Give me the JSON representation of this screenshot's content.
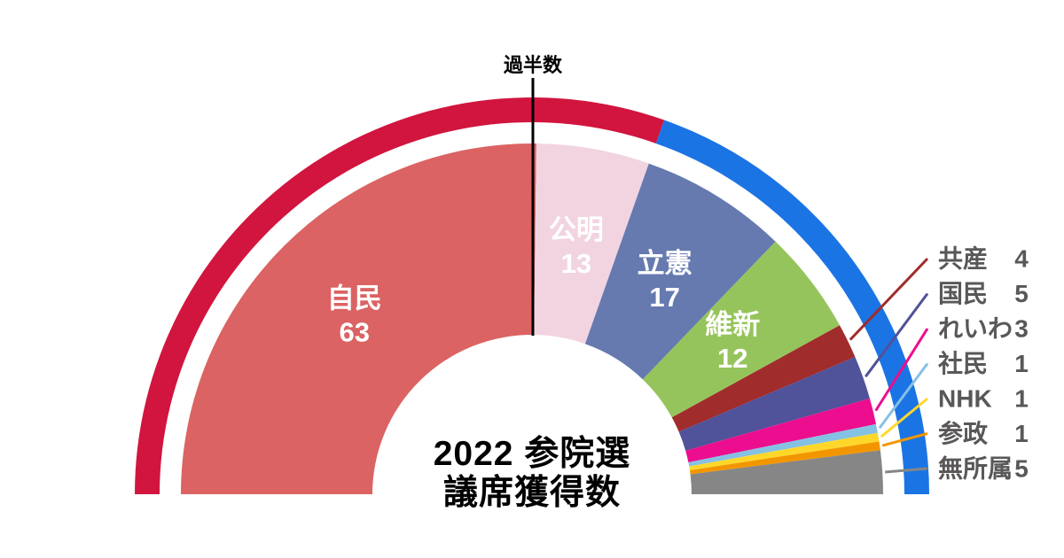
{
  "title": {
    "line1": "2022 参院選",
    "line2": "議席獲得数"
  },
  "majority_marker_label": "過半数",
  "legend_text_color": "#595757",
  "chart_data": {
    "type": "half-donut-parliament",
    "title": "2022 参院選 議席獲得数",
    "total_seats": 125,
    "majority_marker": {
      "label": "過半数",
      "at_seats": 62.5
    },
    "parties": [
      {
        "name": "自民",
        "seats": 63,
        "color": "#DB6363",
        "label": "inside"
      },
      {
        "name": "公明",
        "seats": 13,
        "color": "#F2D4E1",
        "label": "inside"
      },
      {
        "name": "立憲",
        "seats": 17,
        "color": "#667AB0",
        "label": "inside"
      },
      {
        "name": "維新",
        "seats": 12,
        "color": "#96C45C",
        "label": "inside"
      },
      {
        "name": "共産",
        "seats": 4,
        "color": "#A02C2C",
        "label": "legend"
      },
      {
        "name": "国民",
        "seats": 5,
        "color": "#50529A",
        "label": "legend"
      },
      {
        "name": "れいわ",
        "seats": 3,
        "color": "#EC0E8E",
        "label": "legend"
      },
      {
        "name": "社民",
        "seats": 1,
        "color": "#85C1E3",
        "label": "legend"
      },
      {
        "name": "NHK",
        "seats": 1,
        "color": "#FFD72B",
        "label": "legend"
      },
      {
        "name": "参政",
        "seats": 1,
        "color": "#F29600",
        "label": "legend"
      },
      {
        "name": "無所属",
        "seats": 5,
        "color": "#868686",
        "label": "legend"
      }
    ],
    "outer_ring": [
      {
        "side": "left",
        "seats": 76,
        "color": "#D1153E"
      },
      {
        "side": "right",
        "seats": 49,
        "color": "#1B74E4"
      }
    ],
    "layout_hints": {
      "orientation": "semicircle-180deg",
      "inside_label_color": "#ffffff",
      "legend_position": "right"
    }
  }
}
